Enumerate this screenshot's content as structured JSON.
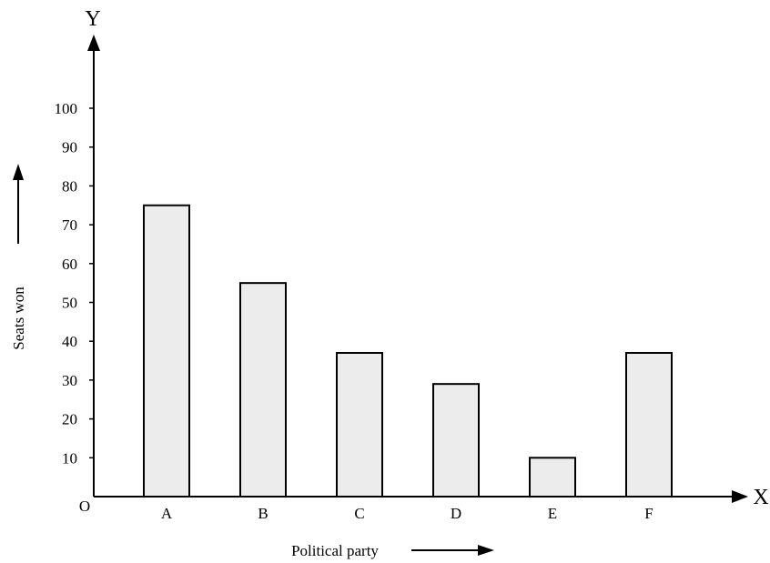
{
  "chart_data": {
    "type": "bar",
    "categories": [
      "A",
      "B",
      "C",
      "D",
      "E",
      "F"
    ],
    "values": [
      75,
      55,
      37,
      29,
      10,
      37
    ],
    "xlabel": "Political party",
    "ylabel": "Seats won",
    "x_axis_letter": "X",
    "y_axis_letter": "Y",
    "origin_label": "O",
    "ylim": [
      0,
      100
    ],
    "yticks": [
      10,
      20,
      30,
      40,
      50,
      60,
      70,
      80,
      90,
      100
    ],
    "grid": false,
    "colors": {
      "bar_fill": "#ececec",
      "bar_stroke": "#000000",
      "axis": "#000000"
    }
  }
}
